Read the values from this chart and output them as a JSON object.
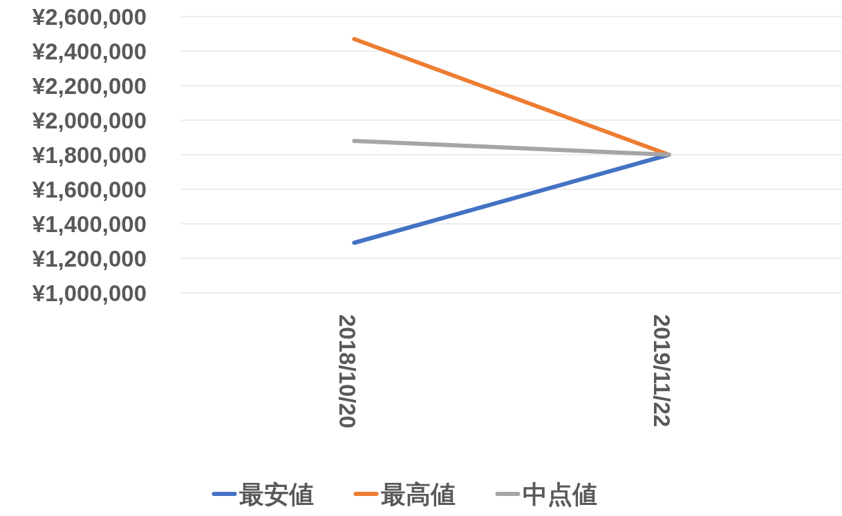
{
  "chart_data": {
    "type": "line",
    "categories": [
      "2018/10/20",
      "2019/11/22"
    ],
    "series": [
      {
        "name": "最安値",
        "color": "#4472c4",
        "values": [
          1290000,
          1800000
        ]
      },
      {
        "name": "最高値",
        "color": "#ed7d31",
        "values": [
          2470000,
          1800000
        ]
      },
      {
        "name": "中点値",
        "color": "#a5a5a5",
        "values": [
          1880000,
          1800000
        ]
      }
    ],
    "ylim": [
      1000000,
      2600000
    ],
    "yticks": [
      {
        "value": 1000000,
        "label": "¥1,000,000"
      },
      {
        "value": 1200000,
        "label": "¥1,200,000"
      },
      {
        "value": 1400000,
        "label": "¥1,400,000"
      },
      {
        "value": 1600000,
        "label": "¥1,600,000"
      },
      {
        "value": 1800000,
        "label": "¥1,800,000"
      },
      {
        "value": 2000000,
        "label": "¥2,000,000"
      },
      {
        "value": 2200000,
        "label": "¥2,200,000"
      },
      {
        "value": 2400000,
        "label": "¥2,400,000"
      },
      {
        "value": 2600000,
        "label": "¥2,600,000"
      }
    ],
    "grid": "y",
    "legend": "bottom",
    "marker": "none",
    "line_style": "solid"
  }
}
